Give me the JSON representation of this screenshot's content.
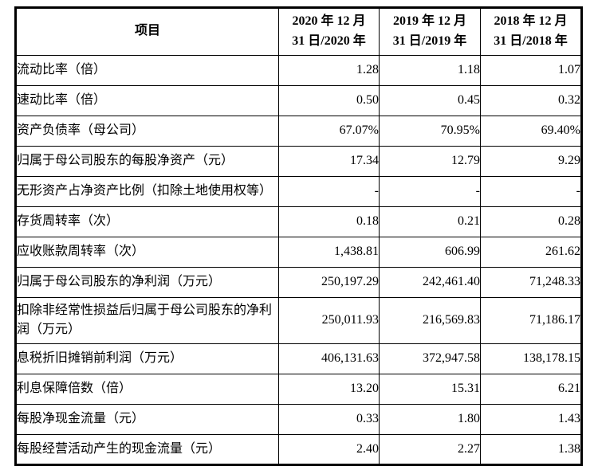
{
  "table": {
    "header": {
      "item": "项目",
      "col_2020": "2020 年 12 月\n31 日/2020 年",
      "col_2019": "2019 年 12 月\n31 日/2019 年",
      "col_2018": "2018 年 12 月\n31 日/2018 年"
    },
    "rows": [
      {
        "label": "流动比率（倍）",
        "values": [
          "1.28",
          "1.18",
          "1.07"
        ]
      },
      {
        "label": "速动比率（倍）",
        "values": [
          "0.50",
          "0.45",
          "0.32"
        ]
      },
      {
        "label": "资产负债率（母公司）",
        "values": [
          "67.07%",
          "70.95%",
          "69.40%"
        ]
      },
      {
        "label": "归属于母公司股东的每股净资产（元）",
        "values": [
          "17.34",
          "12.79",
          "9.29"
        ]
      },
      {
        "label": "无形资产占净资产比例（扣除土地使用权等）",
        "values": [
          "-",
          "-",
          "-"
        ]
      },
      {
        "label": "存货周转率（次）",
        "values": [
          "0.18",
          "0.21",
          "0.28"
        ]
      },
      {
        "label": "应收账款周转率（次）",
        "values": [
          "1,438.81",
          "606.99",
          "261.62"
        ]
      },
      {
        "label": "归属于母公司股东的净利润（万元）",
        "values": [
          "250,197.29",
          "242,461.40",
          "71,248.33"
        ]
      },
      {
        "label": "扣除非经常性损益后归属于母公司股东的净利润（万元）",
        "values": [
          "250,011.93",
          "216,569.83",
          "71,186.17"
        ]
      },
      {
        "label": "息税折旧摊销前利润（万元）",
        "values": [
          "406,131.63",
          "372,947.58",
          "138,178.15"
        ]
      },
      {
        "label": "利息保障倍数（倍）",
        "values": [
          "13.20",
          "15.31",
          "6.21"
        ]
      },
      {
        "label": "每股净现金流量（元）",
        "values": [
          "0.33",
          "1.80",
          "1.43"
        ]
      },
      {
        "label": "每股经营活动产生的现金流量（元）",
        "values": [
          "2.40",
          "2.27",
          "1.38"
        ]
      }
    ]
  },
  "colors": {
    "border": "#000000",
    "text": "#000000",
    "background": "#ffffff"
  }
}
